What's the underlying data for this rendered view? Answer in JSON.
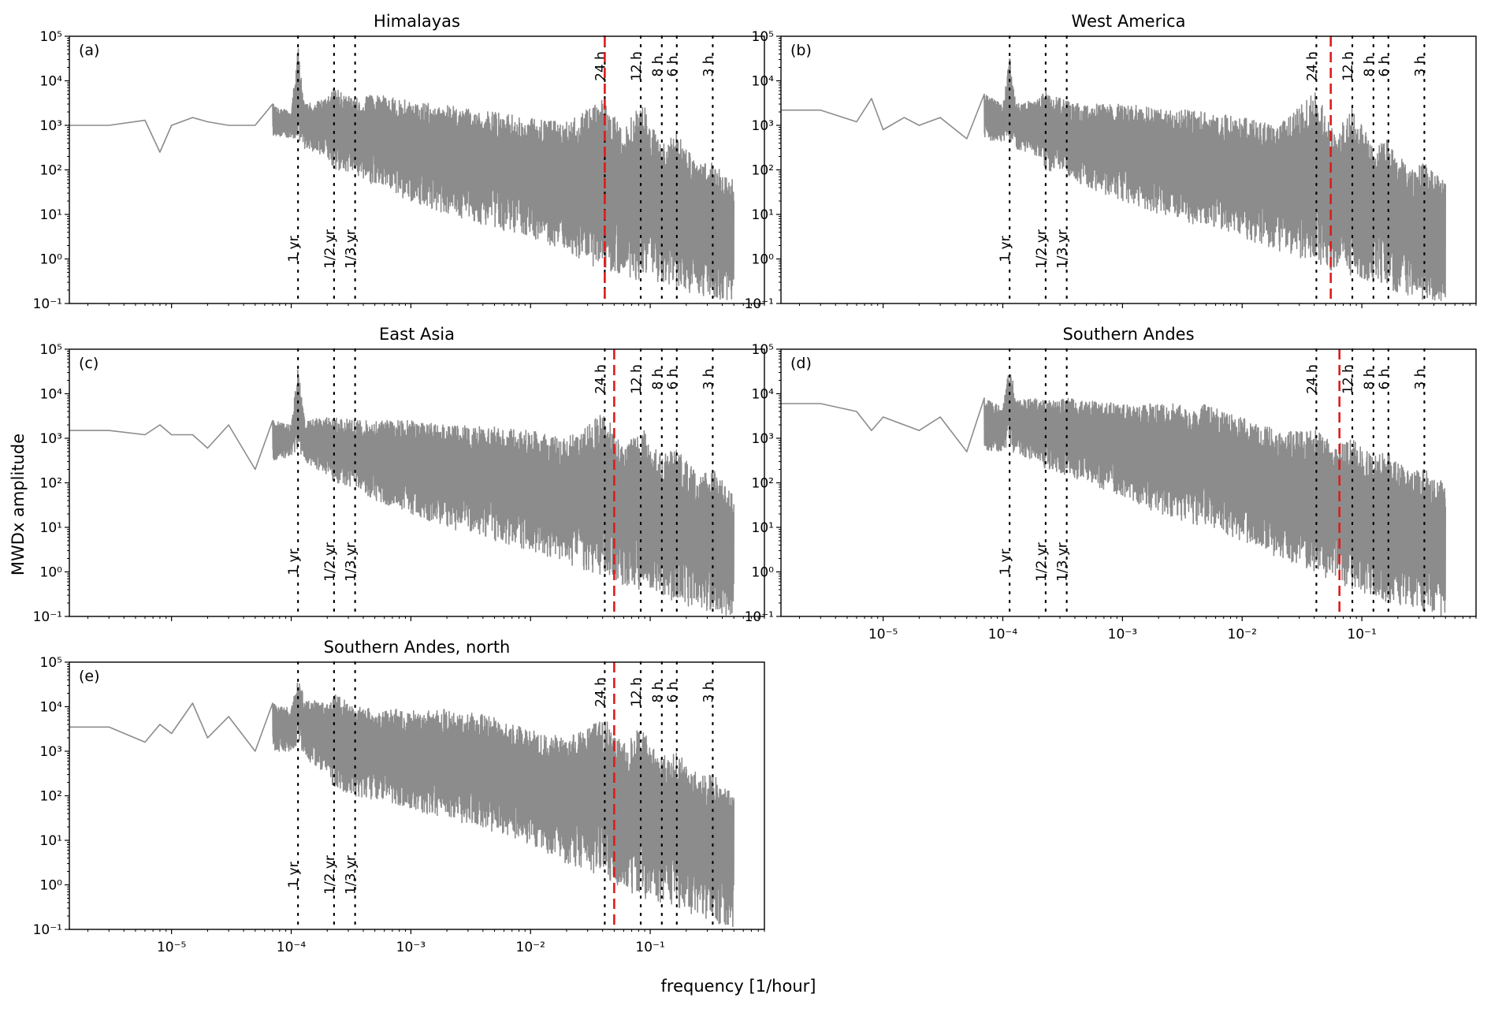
{
  "figure": {
    "ylabel": "MWDx amplitude",
    "xlabel": "frequency [1/hour]"
  },
  "chart_data": [
    {
      "type": "line",
      "panel_label": "(a)",
      "title": "Himalayas",
      "xscale": "log",
      "yscale": "log",
      "xlim": [
        1.4e-06,
        0.9
      ],
      "ylim": [
        0.1,
        100000
      ],
      "xticks": [
        "10⁻⁵",
        "10⁻⁴",
        "10⁻³",
        "10⁻²",
        "10⁻¹"
      ],
      "yticks": [
        "10⁻¹",
        "10⁰",
        "10¹",
        "10²",
        "10³",
        "10⁴",
        "10⁵"
      ],
      "show_xtick_labels": false,
      "series_color": "#8c8c8c",
      "envelope": {
        "x": [
          1.4e-06,
          3e-06,
          6e-06,
          8e-06,
          1e-05,
          1.5e-05,
          2e-05,
          3e-05,
          5e-05,
          7e-05,
          0.0001,
          0.000114,
          0.00013,
          0.0002,
          0.000228,
          0.00034,
          0.0005,
          0.001,
          0.002,
          0.005,
          0.01,
          0.02,
          0.0417,
          0.06,
          0.0833,
          0.125,
          0.1667,
          0.25,
          0.333,
          0.5
        ],
        "upper": [
          1000,
          1000,
          1300,
          250,
          1000,
          1500,
          1500,
          1000,
          5000,
          3000,
          2000,
          60000,
          3000,
          4000,
          7000,
          4000,
          5000,
          3500,
          2800,
          2000,
          1500,
          1200,
          4000,
          700,
          4000,
          350,
          700,
          130,
          150,
          60
        ],
        "lower": [
          1000,
          1000,
          1300,
          250,
          1000,
          1000,
          1200,
          400,
          1000,
          600,
          500,
          500,
          300,
          200,
          100,
          80,
          40,
          20,
          10,
          5,
          3,
          1.5,
          0.5,
          0.4,
          0.3,
          0.3,
          0.2,
          0.15,
          0.12,
          0.1
        ]
      },
      "cutoff_freq": 0.0417,
      "markers": [
        {
          "label": "1 yr",
          "freq": 0.000114,
          "side": "bottom"
        },
        {
          "label": "1/2 yr",
          "freq": 0.000228,
          "side": "bottom"
        },
        {
          "label": "1/3 yr",
          "freq": 0.000342,
          "side": "bottom"
        },
        {
          "label": "24 h",
          "freq": 0.0417,
          "side": "top"
        },
        {
          "label": "12 h",
          "freq": 0.0833,
          "side": "top"
        },
        {
          "label": "8 h",
          "freq": 0.125,
          "side": "top"
        },
        {
          "label": "6 h",
          "freq": 0.1667,
          "side": "top"
        },
        {
          "label": "3 h",
          "freq": 0.333,
          "side": "top"
        }
      ]
    },
    {
      "type": "line",
      "panel_label": "(b)",
      "title": "West America",
      "xscale": "log",
      "yscale": "log",
      "xlim": [
        1.4e-06,
        0.9
      ],
      "ylim": [
        0.1,
        100000
      ],
      "xticks": [
        "10⁻⁵",
        "10⁻⁴",
        "10⁻³",
        "10⁻²",
        "10⁻¹"
      ],
      "yticks": [
        "10⁻¹",
        "10⁰",
        "10¹",
        "10²",
        "10³",
        "10⁴",
        "10⁵"
      ],
      "show_xtick_labels": false,
      "series_color": "#8c8c8c",
      "envelope": {
        "x": [
          1.4e-06,
          3e-06,
          6e-06,
          8e-06,
          1e-05,
          1.5e-05,
          2e-05,
          3e-05,
          5e-05,
          7e-05,
          0.0001,
          0.000114,
          0.00013,
          0.0002,
          0.000228,
          0.00034,
          0.0005,
          0.001,
          0.002,
          0.005,
          0.01,
          0.02,
          0.0417,
          0.06,
          0.0833,
          0.125,
          0.1667,
          0.25,
          0.333,
          0.5
        ],
        "upper": [
          2200,
          2200,
          1200,
          4000,
          4500,
          1500,
          3000,
          1500,
          5000,
          5000,
          3000,
          40000,
          3000,
          4000,
          6000,
          3500,
          3000,
          3000,
          2500,
          2000,
          1500,
          1000,
          6000,
          600,
          3000,
          300,
          500,
          100,
          150,
          50
        ],
        "lower": [
          2200,
          2200,
          1200,
          2500,
          800,
          1500,
          1000,
          600,
          500,
          500,
          400,
          400,
          300,
          200,
          100,
          80,
          40,
          20,
          10,
          5,
          3,
          1.5,
          0.8,
          0.5,
          0.4,
          0.3,
          0.2,
          0.15,
          0.12,
          0.1
        ]
      },
      "cutoff_freq": 0.055,
      "markers": [
        {
          "label": "1 yr",
          "freq": 0.000114,
          "side": "bottom"
        },
        {
          "label": "1/2 yr",
          "freq": 0.000228,
          "side": "bottom"
        },
        {
          "label": "1/3 yr",
          "freq": 0.000342,
          "side": "bottom"
        },
        {
          "label": "24 h",
          "freq": 0.0417,
          "side": "top"
        },
        {
          "label": "12 h",
          "freq": 0.0833,
          "side": "top"
        },
        {
          "label": "8 h",
          "freq": 0.125,
          "side": "top"
        },
        {
          "label": "6 h",
          "freq": 0.1667,
          "side": "top"
        },
        {
          "label": "3 h",
          "freq": 0.333,
          "side": "top"
        }
      ]
    },
    {
      "type": "line",
      "panel_label": "(c)",
      "title": "East Asia",
      "xscale": "log",
      "yscale": "log",
      "xlim": [
        1.4e-06,
        0.9
      ],
      "ylim": [
        0.1,
        100000
      ],
      "xticks": [
        "10⁻⁵",
        "10⁻⁴",
        "10⁻³",
        "10⁻²",
        "10⁻¹"
      ],
      "yticks": [
        "10⁻¹",
        "10⁰",
        "10¹",
        "10²",
        "10³",
        "10⁴",
        "10⁵"
      ],
      "show_xtick_labels": false,
      "series_color": "#8c8c8c",
      "envelope": {
        "x": [
          1.4e-06,
          3e-06,
          6e-06,
          8e-06,
          1e-05,
          1.5e-05,
          2e-05,
          3e-05,
          5e-05,
          7e-05,
          0.0001,
          0.000114,
          0.00013,
          0.0002,
          0.000228,
          0.00034,
          0.0005,
          0.001,
          0.002,
          0.005,
          0.01,
          0.02,
          0.0417,
          0.06,
          0.0833,
          0.125,
          0.1667,
          0.25,
          0.333,
          0.5
        ],
        "upper": [
          1500,
          1500,
          1200,
          2000,
          1500,
          1200,
          2000,
          2000,
          2000,
          2500,
          2000,
          40000,
          2500,
          3000,
          3000,
          2500,
          2500,
          2500,
          2000,
          1800,
          1500,
          1000,
          4000,
          600,
          2000,
          400,
          600,
          150,
          200,
          60
        ],
        "lower": [
          1500,
          1500,
          1200,
          800,
          1200,
          800,
          600,
          300,
          200,
          300,
          400,
          500,
          300,
          150,
          100,
          80,
          40,
          20,
          10,
          5,
          3,
          1.5,
          0.8,
          0.5,
          0.4,
          0.3,
          0.2,
          0.15,
          0.12,
          0.1
        ]
      },
      "cutoff_freq": 0.05,
      "markers": [
        {
          "label": "1 yr",
          "freq": 0.000114,
          "side": "bottom"
        },
        {
          "label": "1/2 yr",
          "freq": 0.000228,
          "side": "bottom"
        },
        {
          "label": "1/3 yr",
          "freq": 0.000342,
          "side": "bottom"
        },
        {
          "label": "24 h",
          "freq": 0.0417,
          "side": "top"
        },
        {
          "label": "12 h",
          "freq": 0.0833,
          "side": "top"
        },
        {
          "label": "8 h",
          "freq": 0.125,
          "side": "top"
        },
        {
          "label": "6 h",
          "freq": 0.1667,
          "side": "top"
        },
        {
          "label": "3 h",
          "freq": 0.333,
          "side": "top"
        }
      ]
    },
    {
      "type": "line",
      "panel_label": "(d)",
      "title": "Southern Andes",
      "xscale": "log",
      "yscale": "log",
      "xlim": [
        1.4e-06,
        0.9
      ],
      "ylim": [
        0.1,
        100000
      ],
      "xticks": [
        "10⁻⁵",
        "10⁻⁴",
        "10⁻³",
        "10⁻²",
        "10⁻¹"
      ],
      "yticks": [
        "10⁻¹",
        "10⁰",
        "10¹",
        "10²",
        "10³",
        "10⁴",
        "10⁵"
      ],
      "show_xtick_labels": true,
      "series_color": "#8c8c8c",
      "envelope": {
        "x": [
          1.4e-06,
          3e-06,
          6e-06,
          8e-06,
          1e-05,
          1.5e-05,
          2e-05,
          3e-05,
          5e-05,
          7e-05,
          0.0001,
          0.000114,
          0.00013,
          0.0002,
          0.000228,
          0.00034,
          0.0005,
          0.001,
          0.002,
          0.005,
          0.01,
          0.02,
          0.0417,
          0.06,
          0.0833,
          0.125,
          0.1667,
          0.25,
          0.333,
          0.5
        ],
        "upper": [
          6000,
          6000,
          4000,
          1500,
          4000,
          2000,
          5000,
          3000,
          6000,
          8000,
          5000,
          50000,
          7000,
          8000,
          7000,
          8000,
          7000,
          6000,
          6000,
          6000,
          3000,
          1500,
          1500,
          700,
          1000,
          400,
          500,
          200,
          200,
          100
        ],
        "lower": [
          6000,
          6000,
          4000,
          1500,
          3000,
          2000,
          1500,
          60,
          500,
          500,
          500,
          600,
          400,
          300,
          200,
          150,
          100,
          50,
          20,
          10,
          5,
          2,
          1,
          0.5,
          0.4,
          0.3,
          0.2,
          0.15,
          0.12,
          0.1
        ]
      },
      "cutoff_freq": 0.065,
      "markers": [
        {
          "label": "1 yr",
          "freq": 0.000114,
          "side": "bottom"
        },
        {
          "label": "1/2 yr",
          "freq": 0.000228,
          "side": "bottom"
        },
        {
          "label": "1/3 yr",
          "freq": 0.000342,
          "side": "bottom"
        },
        {
          "label": "24 h",
          "freq": 0.0417,
          "side": "top"
        },
        {
          "label": "12 h",
          "freq": 0.0833,
          "side": "top"
        },
        {
          "label": "8 h",
          "freq": 0.125,
          "side": "top"
        },
        {
          "label": "6 h",
          "freq": 0.1667,
          "side": "top"
        },
        {
          "label": "3 h",
          "freq": 0.333,
          "side": "top"
        }
      ]
    },
    {
      "type": "line",
      "panel_label": "(e)",
      "title": "Southern Andes, north",
      "xscale": "log",
      "yscale": "log",
      "xlim": [
        1.4e-06,
        0.9
      ],
      "ylim": [
        0.1,
        100000
      ],
      "xticks": [
        "10⁻⁵",
        "10⁻⁴",
        "10⁻³",
        "10⁻²",
        "10⁻¹"
      ],
      "yticks": [
        "10⁻¹",
        "10⁰",
        "10¹",
        "10²",
        "10³",
        "10⁴",
        "10⁵"
      ],
      "show_xtick_labels": true,
      "series_color": "#8c8c8c",
      "envelope": {
        "x": [
          1.4e-06,
          3e-06,
          6e-06,
          8e-06,
          1e-05,
          1.5e-05,
          2e-05,
          3e-05,
          5e-05,
          7e-05,
          0.0001,
          0.000114,
          0.00013,
          0.0002,
          0.000228,
          0.00034,
          0.0005,
          0.001,
          0.002,
          0.005,
          0.01,
          0.02,
          0.0417,
          0.06,
          0.0833,
          0.125,
          0.1667,
          0.25,
          0.333,
          0.5
        ],
        "upper": [
          3500,
          3500,
          1600,
          4000,
          7000,
          12000,
          8000,
          6000,
          15000,
          12000,
          9000,
          45000,
          15000,
          12000,
          20000,
          10000,
          10000,
          8000,
          9000,
          6000,
          3000,
          2000,
          6000,
          1500,
          4000,
          800,
          1000,
          300,
          300,
          100
        ],
        "lower": [
          3500,
          3500,
          1600,
          3000,
          2500,
          4000,
          2000,
          800,
          1000,
          1000,
          1000,
          1500,
          600,
          300,
          150,
          100,
          80,
          50,
          30,
          15,
          8,
          3,
          1.5,
          0.8,
          0.5,
          0.4,
          0.3,
          0.2,
          0.15,
          0.1
        ]
      },
      "cutoff_freq": 0.05,
      "markers": [
        {
          "label": "1 yr",
          "freq": 0.000114,
          "side": "bottom"
        },
        {
          "label": "1/2 yr",
          "freq": 0.000228,
          "side": "bottom"
        },
        {
          "label": "1/3 yr",
          "freq": 0.000342,
          "side": "bottom"
        },
        {
          "label": "24 h",
          "freq": 0.0417,
          "side": "top"
        },
        {
          "label": "12 h",
          "freq": 0.0833,
          "side": "top"
        },
        {
          "label": "8 h",
          "freq": 0.125,
          "side": "top"
        },
        {
          "label": "6 h",
          "freq": 0.1667,
          "side": "top"
        },
        {
          "label": "3 h",
          "freq": 0.333,
          "side": "top"
        }
      ]
    }
  ]
}
